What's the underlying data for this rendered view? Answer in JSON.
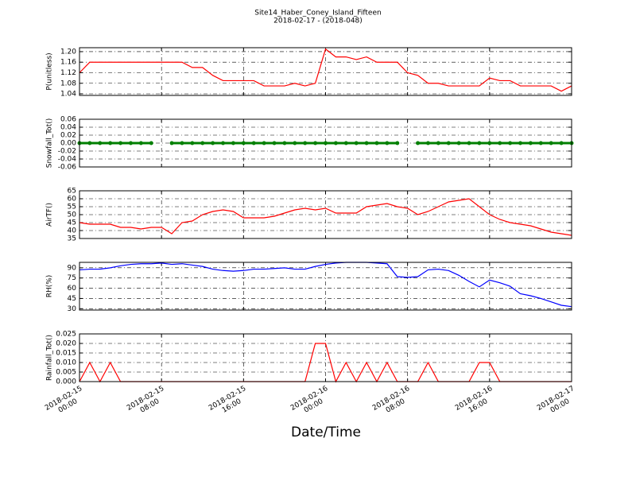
{
  "title": "Site14_Haber_Coney_Island_Fifteen",
  "subtitle": "2018-02-17 - (2018-048)",
  "xlabel": "Date/Time",
  "chart_data": [
    {
      "type": "line",
      "ylabel": "P(unitless)",
      "grid": true,
      "xlim": [
        "2018-02-15 00:00",
        "2018-02-17 00:00"
      ],
      "xticks": [
        "2018-02-15 00:00",
        "2018-02-15 08:00",
        "2018-02-15 16:00",
        "2018-02-16 00:00",
        "2018-02-16 08:00",
        "2018-02-16 16:00",
        "2018-02-17 00:00"
      ],
      "ylim": [
        1.034,
        1.215
      ],
      "yticks": [
        1.04,
        1.08,
        1.12,
        1.16,
        {
          "value": 1.2,
          "label": "1.20"
        }
      ],
      "x": [
        "2018-02-15 00:00",
        "2018-02-15 01:00",
        "2018-02-15 02:00",
        "2018-02-15 03:00",
        "2018-02-15 04:00",
        "2018-02-15 05:00",
        "2018-02-15 06:00",
        "2018-02-15 07:00",
        "2018-02-15 08:00",
        "2018-02-15 09:00",
        "2018-02-15 10:00",
        "2018-02-15 11:00",
        "2018-02-15 12:00",
        "2018-02-15 13:00",
        "2018-02-15 14:00",
        "2018-02-15 15:00",
        "2018-02-15 16:00",
        "2018-02-15 17:00",
        "2018-02-15 18:00",
        "2018-02-15 19:00",
        "2018-02-15 20:00",
        "2018-02-15 21:00",
        "2018-02-15 22:00",
        "2018-02-15 23:00",
        "2018-02-16 00:00",
        "2018-02-16 01:00",
        "2018-02-16 02:00",
        "2018-02-16 03:00",
        "2018-02-16 04:00",
        "2018-02-16 05:00",
        "2018-02-16 06:00",
        "2018-02-16 07:00",
        "2018-02-16 08:00",
        "2018-02-16 09:00",
        "2018-02-16 10:00",
        "2018-02-16 11:00",
        "2018-02-16 12:00",
        "2018-02-16 13:00",
        "2018-02-16 14:00",
        "2018-02-16 15:00",
        "2018-02-16 16:00",
        "2018-02-16 17:00",
        "2018-02-16 18:00",
        "2018-02-16 19:00",
        "2018-02-16 20:00",
        "2018-02-16 21:00",
        "2018-02-16 22:00",
        "2018-02-16 23:00",
        "2018-02-17 00:00"
      ],
      "series": [
        {
          "name": "P(unitless)",
          "color": "#ff0000",
          "values": [
            1.12,
            1.16,
            1.16,
            1.16,
            1.16,
            1.16,
            1.16,
            1.16,
            1.16,
            1.16,
            1.16,
            1.14,
            1.14,
            1.11,
            1.09,
            1.09,
            1.09,
            1.09,
            1.07,
            1.07,
            1.07,
            1.08,
            1.07,
            1.08,
            1.21,
            1.18,
            1.18,
            1.17,
            1.18,
            1.16,
            1.16,
            1.16,
            1.12,
            1.11,
            1.08,
            1.08,
            1.07,
            1.07,
            1.07,
            1.07,
            1.1,
            1.09,
            1.09,
            1.07,
            1.07,
            1.07,
            1.07,
            1.05,
            1.07
          ]
        }
      ]
    },
    {
      "type": "line",
      "ylabel": "Snowfall_Tot()",
      "grid": true,
      "markers": true,
      "xlim": [
        "2018-02-15 00:00",
        "2018-02-17 00:00"
      ],
      "xticks": [
        "2018-02-15 00:00",
        "2018-02-15 08:00",
        "2018-02-15 16:00",
        "2018-02-16 00:00",
        "2018-02-16 08:00",
        "2018-02-16 16:00",
        "2018-02-17 00:00"
      ],
      "ylim": [
        -0.06,
        0.06
      ],
      "yticks": [
        -0.06,
        -0.04,
        -0.02,
        {
          "value": 0,
          "label": "0.00"
        },
        0.02,
        0.04,
        0.06
      ],
      "x": [
        "2018-02-15 00:00",
        "2018-02-15 01:00",
        "2018-02-15 02:00",
        "2018-02-15 03:00",
        "2018-02-15 04:00",
        "2018-02-15 05:00",
        "2018-02-15 06:00",
        "2018-02-15 07:00",
        "2018-02-15 08:00",
        "2018-02-15 09:00",
        "2018-02-15 10:00",
        "2018-02-15 11:00",
        "2018-02-15 12:00",
        "2018-02-15 13:00",
        "2018-02-15 14:00",
        "2018-02-15 15:00",
        "2018-02-15 16:00",
        "2018-02-15 17:00",
        "2018-02-15 18:00",
        "2018-02-15 19:00",
        "2018-02-15 20:00",
        "2018-02-15 21:00",
        "2018-02-15 22:00",
        "2018-02-15 23:00",
        "2018-02-16 00:00",
        "2018-02-16 01:00",
        "2018-02-16 02:00",
        "2018-02-16 03:00",
        "2018-02-16 04:00",
        "2018-02-16 05:00",
        "2018-02-16 06:00",
        "2018-02-16 07:00",
        "2018-02-16 08:00",
        "2018-02-16 09:00",
        "2018-02-16 10:00",
        "2018-02-16 11:00",
        "2018-02-16 12:00",
        "2018-02-16 13:00",
        "2018-02-16 14:00",
        "2018-02-16 15:00",
        "2018-02-16 16:00",
        "2018-02-16 17:00",
        "2018-02-16 18:00",
        "2018-02-16 19:00",
        "2018-02-16 20:00",
        "2018-02-16 21:00",
        "2018-02-16 22:00",
        "2018-02-16 23:00",
        "2018-02-17 00:00"
      ],
      "series": [
        {
          "name": "Snowfall_Tot()",
          "color": "#008000",
          "values": [
            0,
            0,
            0,
            0,
            0,
            0,
            0,
            0,
            null,
            0,
            0,
            0,
            0,
            0,
            0,
            0,
            0,
            0,
            0,
            0,
            0,
            0,
            0,
            0,
            0,
            0,
            0,
            0,
            0,
            0,
            0,
            0,
            null,
            0,
            0,
            0,
            0,
            0,
            0,
            0,
            0,
            0,
            0,
            0,
            0,
            0,
            0,
            0,
            0
          ]
        }
      ]
    },
    {
      "type": "line",
      "ylabel": "AirTF()",
      "grid": true,
      "xlim": [
        "2018-02-15 00:00",
        "2018-02-17 00:00"
      ],
      "xticks": [
        "2018-02-15 00:00",
        "2018-02-15 08:00",
        "2018-02-15 16:00",
        "2018-02-16 00:00",
        "2018-02-16 08:00",
        "2018-02-16 16:00",
        "2018-02-17 00:00"
      ],
      "ylim": [
        35,
        65
      ],
      "yticks": [
        35,
        40,
        45,
        50,
        55,
        60,
        65
      ],
      "x": [
        "2018-02-15 00:00",
        "2018-02-15 01:00",
        "2018-02-15 02:00",
        "2018-02-15 03:00",
        "2018-02-15 04:00",
        "2018-02-15 05:00",
        "2018-02-15 06:00",
        "2018-02-15 07:00",
        "2018-02-15 08:00",
        "2018-02-15 09:00",
        "2018-02-15 10:00",
        "2018-02-15 11:00",
        "2018-02-15 12:00",
        "2018-02-15 13:00",
        "2018-02-15 14:00",
        "2018-02-15 15:00",
        "2018-02-15 16:00",
        "2018-02-15 17:00",
        "2018-02-15 18:00",
        "2018-02-15 19:00",
        "2018-02-15 20:00",
        "2018-02-15 21:00",
        "2018-02-15 22:00",
        "2018-02-15 23:00",
        "2018-02-16 00:00",
        "2018-02-16 01:00",
        "2018-02-16 02:00",
        "2018-02-16 03:00",
        "2018-02-16 04:00",
        "2018-02-16 05:00",
        "2018-02-16 06:00",
        "2018-02-16 07:00",
        "2018-02-16 08:00",
        "2018-02-16 09:00",
        "2018-02-16 10:00",
        "2018-02-16 11:00",
        "2018-02-16 12:00",
        "2018-02-16 13:00",
        "2018-02-16 14:00",
        "2018-02-16 15:00",
        "2018-02-16 16:00",
        "2018-02-16 17:00",
        "2018-02-16 18:00",
        "2018-02-16 19:00",
        "2018-02-16 20:00",
        "2018-02-16 21:00",
        "2018-02-16 22:00",
        "2018-02-16 23:00",
        "2018-02-17 00:00"
      ],
      "series": [
        {
          "name": "AirTF()",
          "color": "#ff0000",
          "values": [
            45,
            44,
            44,
            44,
            42,
            42,
            41,
            42,
            42,
            38,
            45,
            46,
            50,
            52,
            53,
            52,
            48,
            48,
            48,
            49,
            51,
            53,
            54,
            53,
            54,
            51,
            51,
            51,
            55,
            56,
            57,
            55,
            54,
            50,
            52,
            55,
            58,
            59,
            60,
            55,
            50,
            47,
            45,
            44,
            43,
            41,
            39,
            38,
            37
          ]
        }
      ]
    },
    {
      "type": "line",
      "ylabel": "RH(%)",
      "grid": true,
      "xlim": [
        "2018-02-15 00:00",
        "2018-02-17 00:00"
      ],
      "xticks": [
        "2018-02-15 00:00",
        "2018-02-15 08:00",
        "2018-02-15 16:00",
        "2018-02-16 00:00",
        "2018-02-16 08:00",
        "2018-02-16 16:00",
        "2018-02-17 00:00"
      ],
      "ylim": [
        28,
        98
      ],
      "yticks": [
        30,
        45,
        60,
        75,
        90
      ],
      "x": [
        "2018-02-15 00:00",
        "2018-02-15 01:00",
        "2018-02-15 02:00",
        "2018-02-15 03:00",
        "2018-02-15 04:00",
        "2018-02-15 05:00",
        "2018-02-15 06:00",
        "2018-02-15 07:00",
        "2018-02-15 08:00",
        "2018-02-15 09:00",
        "2018-02-15 10:00",
        "2018-02-15 11:00",
        "2018-02-15 12:00",
        "2018-02-15 13:00",
        "2018-02-15 14:00",
        "2018-02-15 15:00",
        "2018-02-15 16:00",
        "2018-02-15 17:00",
        "2018-02-15 18:00",
        "2018-02-15 19:00",
        "2018-02-15 20:00",
        "2018-02-15 21:00",
        "2018-02-15 22:00",
        "2018-02-15 23:00",
        "2018-02-16 00:00",
        "2018-02-16 01:00",
        "2018-02-16 02:00",
        "2018-02-16 03:00",
        "2018-02-16 04:00",
        "2018-02-16 05:00",
        "2018-02-16 06:00",
        "2018-02-16 07:00",
        "2018-02-16 08:00",
        "2018-02-16 09:00",
        "2018-02-16 10:00",
        "2018-02-16 11:00",
        "2018-02-16 12:00",
        "2018-02-16 13:00",
        "2018-02-16 14:00",
        "2018-02-16 15:00",
        "2018-02-16 16:00",
        "2018-02-16 17:00",
        "2018-02-16 18:00",
        "2018-02-16 19:00",
        "2018-02-16 20:00",
        "2018-02-16 21:00",
        "2018-02-16 22:00",
        "2018-02-16 23:00",
        "2018-02-17 00:00"
      ],
      "series": [
        {
          "name": "RH(%)",
          "color": "#0000ff",
          "values": [
            87,
            88,
            88,
            90,
            93,
            95,
            96,
            96,
            97,
            95,
            96,
            94,
            92,
            88,
            86,
            85,
            86,
            88,
            88,
            89,
            90,
            88,
            88,
            92,
            95,
            97,
            98,
            98,
            98,
            97,
            96,
            77,
            76,
            77,
            87,
            88,
            86,
            79,
            70,
            62,
            72,
            68,
            63,
            52,
            49,
            45,
            40,
            35,
            33
          ]
        }
      ]
    },
    {
      "type": "line",
      "ylabel": "Rainfall_Tot()",
      "grid": true,
      "xlim": [
        "2018-02-15 00:00",
        "2018-02-17 00:00"
      ],
      "xticks": [
        {
          "value": "2018-02-15 00:00",
          "label": "2018-02-15\n00:00"
        },
        {
          "value": "2018-02-15 08:00",
          "label": "2018-02-15\n08:00"
        },
        {
          "value": "2018-02-15 16:00",
          "label": "2018-02-15\n16:00"
        },
        {
          "value": "2018-02-16 00:00",
          "label": "2018-02-16\n00:00"
        },
        {
          "value": "2018-02-16 08:00",
          "label": "2018-02-16\n08:00"
        },
        {
          "value": "2018-02-16 16:00",
          "label": "2018-02-16\n16:00"
        },
        {
          "value": "2018-02-17 00:00",
          "label": "2018-02-17\n00:00"
        }
      ],
      "ylim": [
        0,
        0.025
      ],
      "yticks": [
        {
          "value": 0,
          "label": "0.000"
        },
        0.005,
        {
          "value": 0.01,
          "label": "0.010"
        },
        0.015,
        {
          "value": 0.02,
          "label": "0.020"
        },
        0.025
      ],
      "x": [
        "2018-02-15 00:00",
        "2018-02-15 01:00",
        "2018-02-15 02:00",
        "2018-02-15 03:00",
        "2018-02-15 04:00",
        "2018-02-15 05:00",
        "2018-02-15 06:00",
        "2018-02-15 07:00",
        "2018-02-15 08:00",
        "2018-02-15 09:00",
        "2018-02-15 10:00",
        "2018-02-15 11:00",
        "2018-02-15 12:00",
        "2018-02-15 13:00",
        "2018-02-15 14:00",
        "2018-02-15 15:00",
        "2018-02-15 16:00",
        "2018-02-15 17:00",
        "2018-02-15 18:00",
        "2018-02-15 19:00",
        "2018-02-15 20:00",
        "2018-02-15 21:00",
        "2018-02-15 22:00",
        "2018-02-15 23:00",
        "2018-02-16 00:00",
        "2018-02-16 01:00",
        "2018-02-16 02:00",
        "2018-02-16 03:00",
        "2018-02-16 04:00",
        "2018-02-16 05:00",
        "2018-02-16 06:00",
        "2018-02-16 07:00",
        "2018-02-16 08:00",
        "2018-02-16 09:00",
        "2018-02-16 10:00",
        "2018-02-16 11:00",
        "2018-02-16 12:00",
        "2018-02-16 13:00",
        "2018-02-16 14:00",
        "2018-02-16 15:00",
        "2018-02-16 16:00",
        "2018-02-16 17:00",
        "2018-02-16 18:00",
        "2018-02-16 19:00",
        "2018-02-16 20:00",
        "2018-02-16 21:00",
        "2018-02-16 22:00",
        "2018-02-16 23:00",
        "2018-02-17 00:00"
      ],
      "series": [
        {
          "name": "Rainfall_Tot()",
          "color": "#ff0000",
          "values": [
            0,
            0.01,
            0,
            0.01,
            0,
            0,
            0,
            0,
            0,
            0,
            0,
            0,
            0,
            0,
            0,
            0,
            0,
            0,
            0,
            0,
            0,
            0,
            0,
            0.02,
            0.02,
            0,
            0.01,
            0,
            0.01,
            0,
            0.01,
            0,
            0,
            0,
            0.01,
            0,
            0,
            0,
            0,
            0.01,
            0.01,
            0,
            0,
            0,
            0,
            0,
            0,
            0,
            0
          ]
        }
      ]
    }
  ]
}
